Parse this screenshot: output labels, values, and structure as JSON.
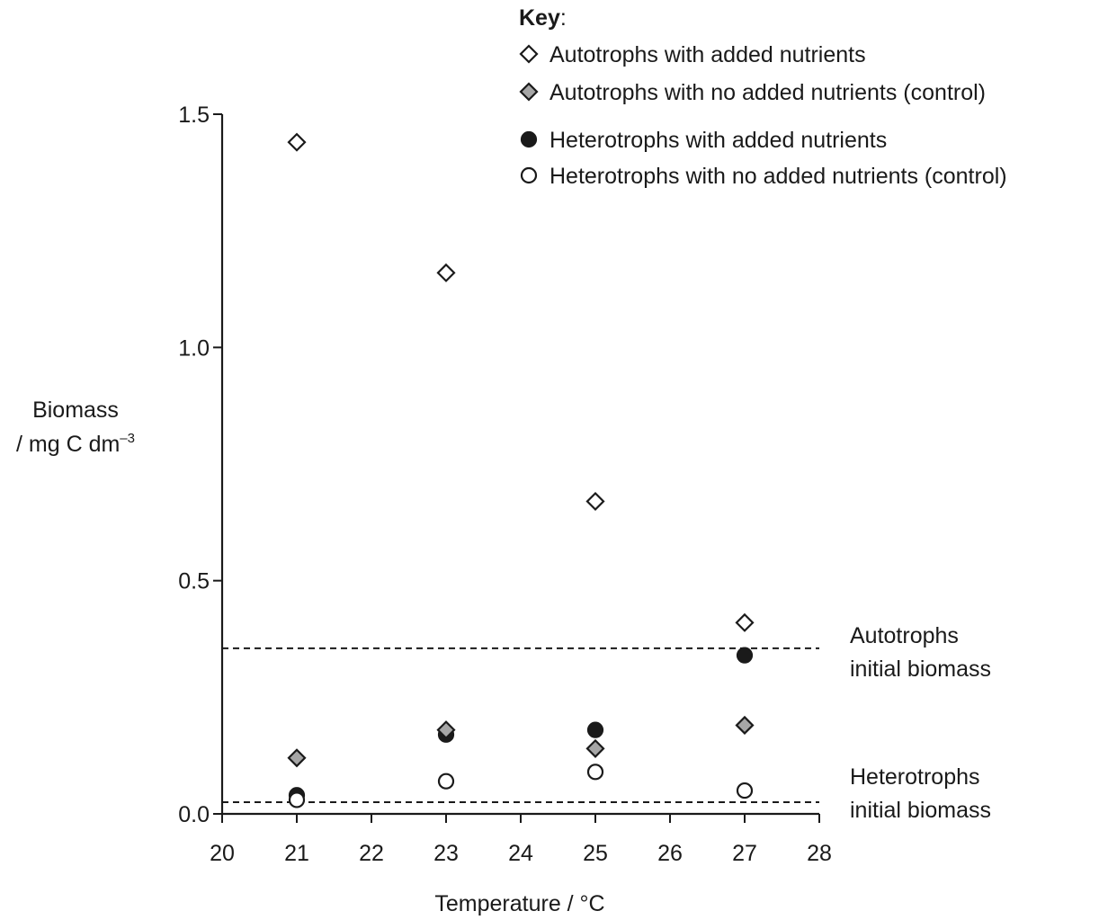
{
  "chart_data": {
    "type": "scatter",
    "xlabel": "Temperature / °C",
    "ylabel_line1": "Biomass",
    "ylabel_line2_prefix": "/ mg C dm",
    "ylabel_line2_sup": "–3",
    "xlim": [
      20,
      28
    ],
    "ylim": [
      0.0,
      1.5
    ],
    "x_ticks": [
      "20",
      "21",
      "22",
      "23",
      "24",
      "25",
      "26",
      "27",
      "28"
    ],
    "y_ticks": [
      "0.0",
      "0.5",
      "1.0",
      "1.5"
    ],
    "grid": false,
    "legend": {
      "title": "Key",
      "title_suffix": ":",
      "placement": "top-right"
    },
    "series": [
      {
        "name": "Autotrophs with added nutrients",
        "marker": "diamond-open",
        "x": [
          21,
          23,
          25,
          27
        ],
        "y": [
          1.44,
          1.16,
          0.67,
          0.41
        ]
      },
      {
        "name": "Autotrophs with no added nutrients (control)",
        "marker": "diamond-grey",
        "x": [
          21,
          23,
          25,
          27
        ],
        "y": [
          0.12,
          0.18,
          0.14,
          0.19
        ]
      },
      {
        "name": "Heterotrophs with added nutrients",
        "marker": "circle-filled",
        "x": [
          21,
          23,
          25,
          27
        ],
        "y": [
          0.04,
          0.17,
          0.18,
          0.34
        ]
      },
      {
        "name": "Heterotrophs with no added nutrients (control)",
        "marker": "circle-open",
        "x": [
          21,
          23,
          25,
          27
        ],
        "y": [
          0.03,
          0.07,
          0.09,
          0.05
        ]
      }
    ],
    "reference_lines": [
      {
        "y": 0.355,
        "label_line1": "Autotrophs",
        "label_line2": "initial biomass"
      },
      {
        "y": 0.025,
        "label_line1": "Heterotrophs",
        "label_line2": "initial biomass"
      }
    ],
    "colors": {
      "ink": "#1a1a1a",
      "grey_fill": "#a6a6a6",
      "background": "#ffffff"
    }
  }
}
